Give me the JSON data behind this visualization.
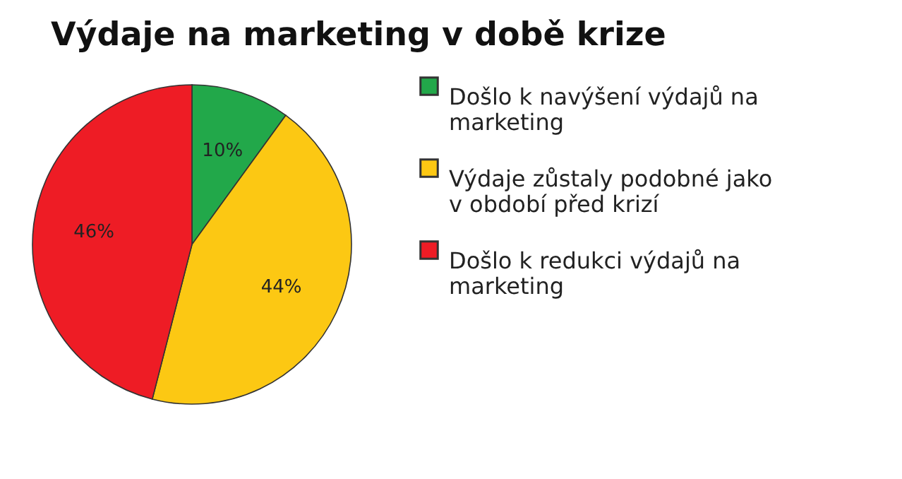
{
  "chart_data": {
    "type": "pie",
    "title": "Výdaje na marketing v době krize",
    "categories": [
      "Došlo k navýšení výdajů na marketing",
      "Výdaje zůstaly podobné jako v období před krizí",
      "Došlo k redukci výdajů na marketing"
    ],
    "values": [
      10,
      44,
      46
    ],
    "colors": [
      "#22a84a",
      "#fcc813",
      "#ee1c25"
    ],
    "value_labels": [
      "10%",
      "44%",
      "46%"
    ],
    "legend": "right"
  }
}
